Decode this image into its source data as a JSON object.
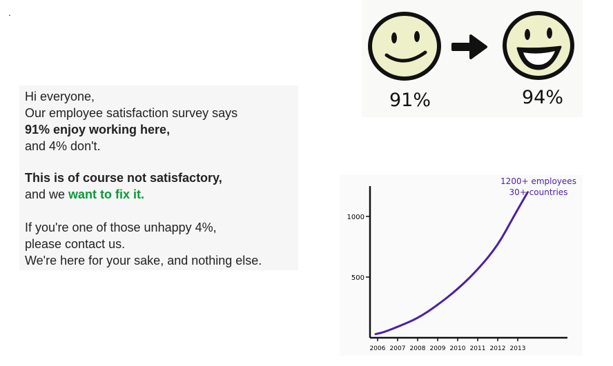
{
  "corner_mark": ".",
  "message": {
    "greeting": "Hi everyone,",
    "line_survey": "Our employee satisfaction survey says",
    "line_enjoy": "91% enjoy working here,",
    "line_dont": "and 4% don't.",
    "line_not_satisfactory": "This is of course not satisfactory,",
    "line_fix_prefix": "and we ",
    "line_fix_emph": "want to fix it.",
    "line_unhappy": "If you're one of those unhappy 4%,",
    "line_contact": "please contact us.",
    "line_sake": "We're here for your sake, and nothing else."
  },
  "faces": {
    "before_percent": "91%",
    "after_percent": "94%"
  },
  "chart_data": {
    "type": "line",
    "title": "",
    "annotation": [
      "1200+ employees",
      "30+ countries"
    ],
    "x_tick_labels": [
      "2006",
      "2007",
      "2008",
      "2009",
      "2010",
      "2011",
      "2012",
      "2013"
    ],
    "y_tick_labels": [
      "500",
      "1000"
    ],
    "ylim": [
      0,
      1250
    ],
    "series": [
      {
        "values": [
          {
            "x": 2005.9,
            "y": 30
          },
          {
            "x": 2006.3,
            "y": 45
          },
          {
            "x": 2007.0,
            "y": 90
          },
          {
            "x": 2008.0,
            "y": 160
          },
          {
            "x": 2009.0,
            "y": 270
          },
          {
            "x": 2010.0,
            "y": 400
          },
          {
            "x": 2011.0,
            "y": 560
          },
          {
            "x": 2012.0,
            "y": 760
          },
          {
            "x": 2012.8,
            "y": 1000
          },
          {
            "x": 2013.5,
            "y": 1200
          }
        ]
      }
    ],
    "colors": {
      "line": "#4b1fa8",
      "annotation": "#4b1fa8"
    }
  }
}
